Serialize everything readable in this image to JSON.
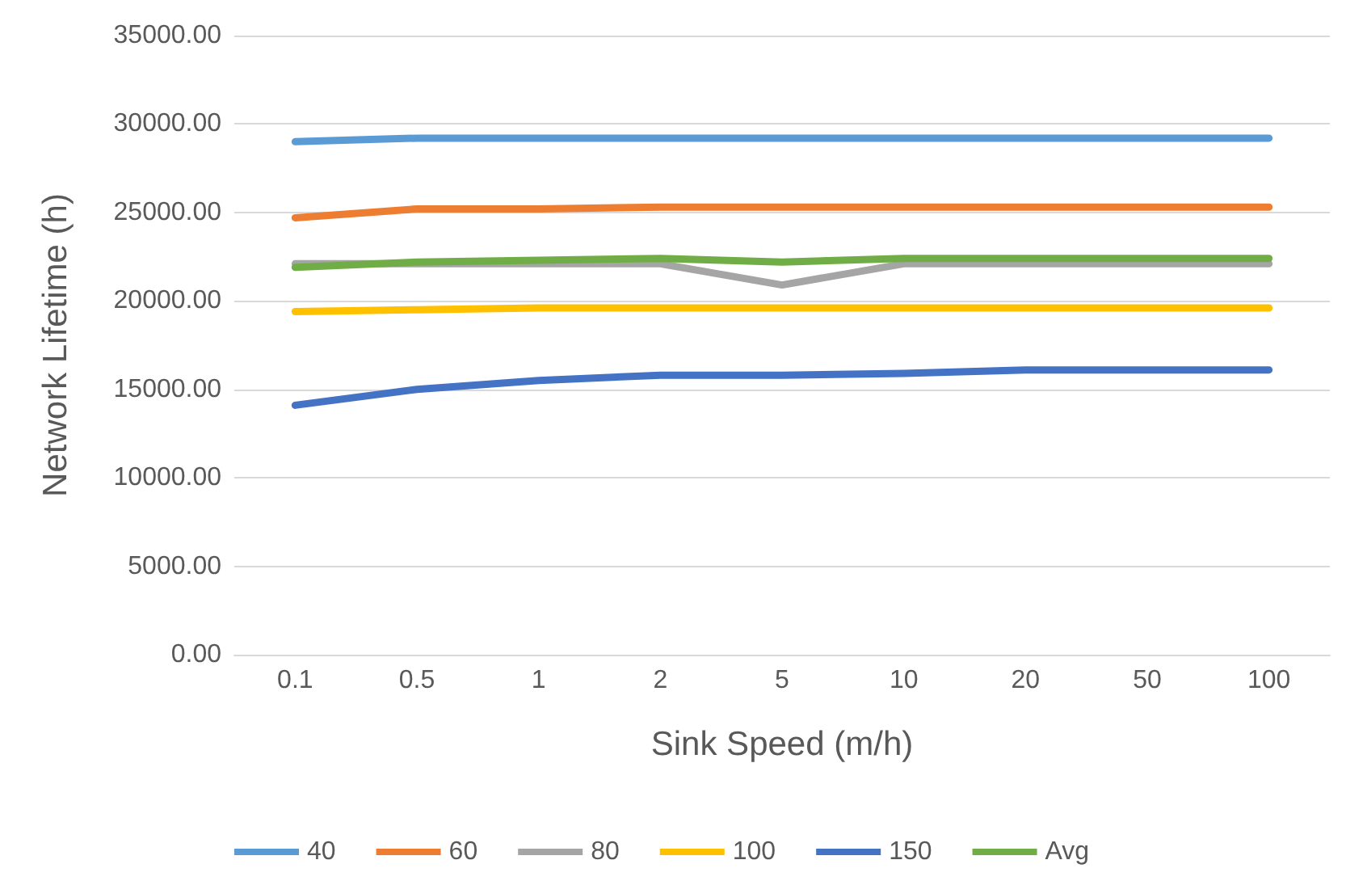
{
  "chart_data": {
    "type": "line",
    "xlabel": "Sink Speed (m/h)",
    "ylabel": "Network Lifetime (h)",
    "categories": [
      "0.1",
      "0.5",
      "1",
      "2",
      "5",
      "10",
      "20",
      "50",
      "100"
    ],
    "series": [
      {
        "name": "40",
        "color": "#5b9bd5",
        "values": [
          29000,
          29200,
          29200,
          29200,
          29200,
          29200,
          29200,
          29200,
          29200
        ]
      },
      {
        "name": "60",
        "color": "#ed7d31",
        "values": [
          24700,
          25200,
          25200,
          25300,
          25300,
          25300,
          25300,
          25300,
          25300
        ]
      },
      {
        "name": "80",
        "color": "#a5a5a5",
        "values": [
          22100,
          22100,
          22100,
          22100,
          20900,
          22100,
          22100,
          22100,
          22100
        ]
      },
      {
        "name": "100",
        "color": "#ffc000",
        "values": [
          19400,
          19500,
          19600,
          19600,
          19600,
          19600,
          19600,
          19600,
          19600
        ]
      },
      {
        "name": "150",
        "color": "#4472c4",
        "values": [
          14100,
          15000,
          15500,
          15800,
          15800,
          15900,
          16100,
          16100,
          16100
        ]
      },
      {
        "name": "Avg",
        "color": "#70ad47",
        "values": [
          21900,
          22200,
          22300,
          22400,
          22200,
          22400,
          22400,
          22400,
          22400
        ]
      }
    ],
    "ylim": [
      0,
      35000
    ],
    "yticks": [
      {
        "value": 0,
        "label": "0.00"
      },
      {
        "value": 5000,
        "label": "5000.00"
      },
      {
        "value": 10000,
        "label": "10000.00"
      },
      {
        "value": 15000,
        "label": "15000.00"
      },
      {
        "value": 20000,
        "label": "20000.00"
      },
      {
        "value": 25000,
        "label": "25000.00"
      },
      {
        "value": 30000,
        "label": "30000.00"
      },
      {
        "value": 35000,
        "label": "35000.00"
      }
    ],
    "grid": "y",
    "legend": "bottom",
    "marker": "none",
    "line_style": "solid"
  }
}
